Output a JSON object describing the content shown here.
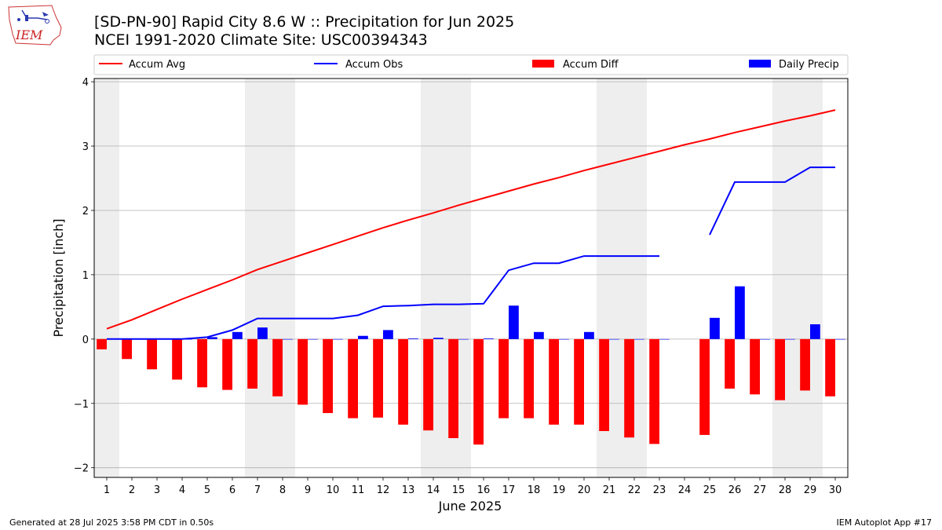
{
  "header": {
    "title_line1": "[SD-PN-90] Rapid City 8.6 W :: Precipitation for Jun 2025",
    "title_line2": "NCEI 1991-2020 Climate Site: USC00394343"
  },
  "logo": {
    "text": "IEM",
    "icon": "iem-iowa-map-logo"
  },
  "footer": {
    "left": "Generated at 28 Jul 2025 3:58 PM CDT in 0.50s",
    "right": "IEM Autoplot App #17"
  },
  "colors": {
    "accum_avg": "#ff0000",
    "accum_obs": "#0000ff",
    "accum_diff": "#ff0000",
    "daily_precip": "#0000ff",
    "weekend_shade": "#eeeeee",
    "grid": "#b0b0b0"
  },
  "chart_data": {
    "type": "bar",
    "xlabel": "June 2025",
    "ylabel": "Precipitation [inch]",
    "xlim": [
      0.5,
      30.5
    ],
    "ylim": [
      -2.15,
      4.05
    ],
    "yticks": [
      -2,
      -1,
      0,
      1,
      2,
      3,
      4
    ],
    "ytick_labels": [
      "−2",
      "−1",
      "0",
      "1",
      "2",
      "3",
      "4"
    ],
    "grid": "horizontal",
    "legend_position": "top",
    "x": [
      1,
      2,
      3,
      4,
      5,
      6,
      7,
      8,
      9,
      10,
      11,
      12,
      13,
      14,
      15,
      16,
      17,
      18,
      19,
      20,
      21,
      22,
      23,
      24,
      25,
      26,
      27,
      28,
      29,
      30
    ],
    "shaded_days": [
      [
        0.5,
        1.5
      ],
      [
        6.5,
        8.5
      ],
      [
        13.5,
        15.5
      ],
      [
        20.5,
        22.5
      ],
      [
        27.5,
        29.5
      ]
    ],
    "series": [
      {
        "name": "Accum Avg",
        "kind": "line",
        "values": [
          0.16,
          0.3,
          0.46,
          0.62,
          0.77,
          0.92,
          1.08,
          1.21,
          1.34,
          1.47,
          1.6,
          1.73,
          1.85,
          1.96,
          2.08,
          2.19,
          2.3,
          2.41,
          2.51,
          2.62,
          2.72,
          2.82,
          2.92,
          3.02,
          3.11,
          3.21,
          3.3,
          3.39,
          3.47,
          3.56
        ]
      },
      {
        "name": "Accum Obs",
        "kind": "line",
        "values": [
          0.0,
          0.0,
          0.0,
          0.0,
          0.03,
          0.14,
          0.32,
          0.32,
          0.32,
          0.32,
          0.37,
          0.51,
          0.52,
          0.54,
          0.54,
          0.55,
          1.07,
          1.18,
          1.18,
          1.29,
          1.29,
          1.29,
          1.29,
          null,
          1.62,
          2.44,
          2.44,
          2.44,
          2.67,
          2.67
        ]
      },
      {
        "name": "Accum Diff",
        "kind": "bar",
        "values": [
          -0.16,
          -0.31,
          -0.47,
          -0.63,
          -0.75,
          -0.79,
          -0.77,
          -0.89,
          -1.02,
          -1.15,
          -1.23,
          -1.22,
          -1.33,
          -1.42,
          -1.54,
          -1.64,
          -1.23,
          -1.23,
          -1.33,
          -1.33,
          -1.43,
          -1.53,
          -1.63,
          null,
          -1.49,
          -0.77,
          -0.86,
          -0.95,
          -0.8,
          -0.89
        ]
      },
      {
        "name": "Daily Precip",
        "kind": "bar",
        "values": [
          0.0,
          0.0,
          0.0,
          0.0,
          0.03,
          0.11,
          0.18,
          0.0,
          0.0,
          0.0,
          0.05,
          0.14,
          0.01,
          0.02,
          0.0,
          0.01,
          0.52,
          0.11,
          0.0,
          0.11,
          0.0,
          0.0,
          0.0,
          null,
          0.33,
          0.82,
          0.0,
          0.0,
          0.23,
          0.0
        ]
      }
    ]
  }
}
